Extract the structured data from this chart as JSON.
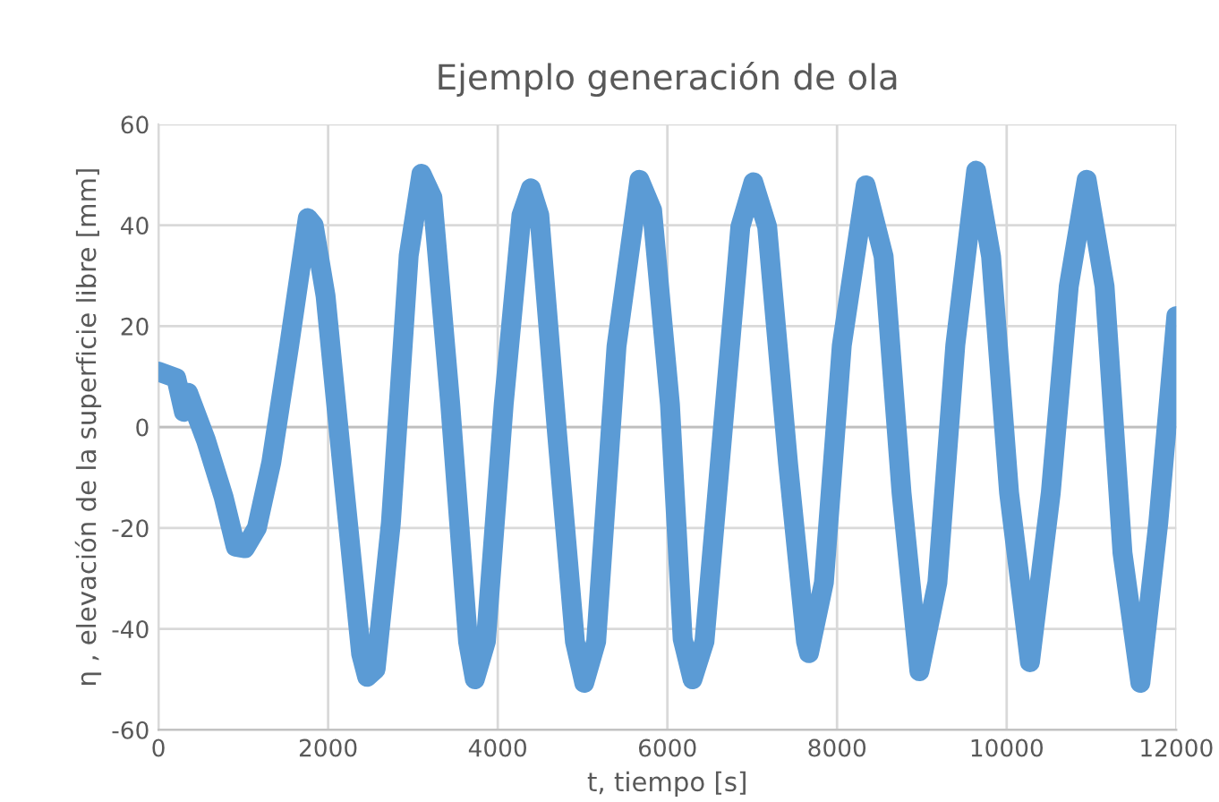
{
  "chart_data": {
    "type": "line",
    "title": "Ejemplo generación de ola",
    "xlabel": "t, tiempo [s]",
    "ylabel": "η , elevación de la superficie libre [mm]",
    "xlim": [
      0,
      12000
    ],
    "xticks": [
      0,
      2000,
      4000,
      6000,
      8000,
      10000,
      12000
    ],
    "ylim": [
      -60,
      60
    ],
    "yticks": [
      -60,
      -40,
      -20,
      0,
      20,
      40,
      60
    ],
    "grid": true,
    "marker": "none",
    "line_style": "solid",
    "series": [
      {
        "color": "#5b9bd5",
        "x": [
          0,
          210,
          300,
          350,
          560,
          770,
          910,
          1020,
          1160,
          1330,
          1540,
          1760,
          1830,
          1970,
          2180,
          2390,
          2460,
          2560,
          2740,
          2950,
          3100,
          3230,
          3440,
          3650,
          3730,
          3860,
          4070,
          4280,
          4390,
          4490,
          4700,
          4910,
          5020,
          5160,
          5400,
          5670,
          5820,
          6030,
          6180,
          6296,
          6437,
          6648,
          6860,
          7014,
          7176,
          7423,
          7634,
          7669,
          7845,
          8056,
          8338,
          8549,
          8760,
          8971,
          9183,
          9394,
          9640,
          9816,
          10028,
          10274,
          10520,
          10732,
          10943,
          11154,
          11365,
          11576,
          11787,
          12000
        ],
        "values": [
          11,
          9.7,
          3,
          6.8,
          -2.6,
          -14,
          -23.7,
          -24,
          -20,
          -7,
          16,
          41.4,
          40,
          26,
          -10,
          -45,
          -49.5,
          -48,
          -19,
          34,
          50.2,
          45.5,
          4.5,
          -42.5,
          -50,
          -42.5,
          4.5,
          42,
          47.3,
          42,
          -1.4,
          -42.5,
          -50.7,
          -42.5,
          16,
          49,
          43,
          4.5,
          -42,
          -50,
          -42.5,
          -1.4,
          39.7,
          48.5,
          39.7,
          -7.3,
          -42.5,
          -44.8,
          -30.8,
          16.2,
          47.9,
          33.8,
          -13,
          -48.4,
          -30.8,
          16.2,
          50.8,
          33.8,
          -13,
          -46.6,
          -13,
          27.9,
          49,
          27.9,
          -24.9,
          -50.7,
          -19,
          22
        ]
      }
    ]
  }
}
